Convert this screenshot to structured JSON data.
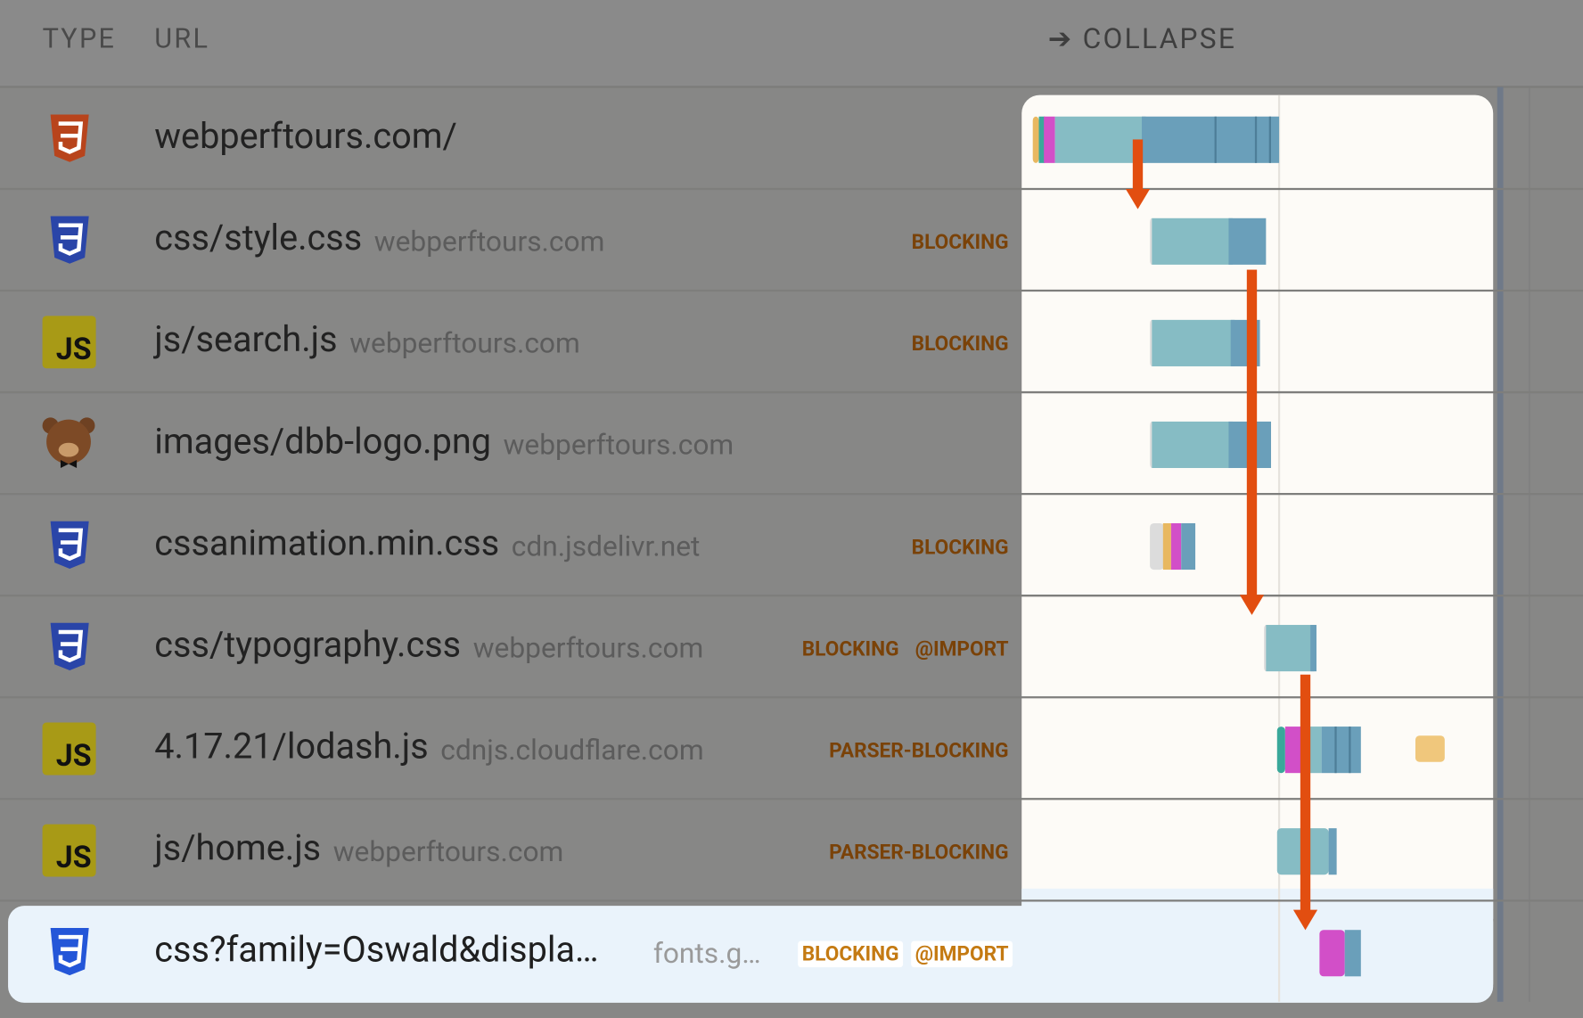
{
  "header": {
    "type": "TYPE",
    "url": "URL",
    "collapse": "➔ COLLAPSE"
  },
  "rows": [
    {
      "path": "webperftours.com/",
      "badges": []
    },
    {
      "path": "css/style.css",
      "domain": "webperftours.com",
      "badges": [
        "BLOCKING"
      ]
    },
    {
      "icon_label": "JS",
      "path": "js/search.js",
      "domain": "webperftours.com",
      "badges": [
        "BLOCKING"
      ]
    },
    {
      "path": "images/dbb-logo.png",
      "domain": "webperftours.com",
      "badges": []
    },
    {
      "path": "cssanimation.min.css",
      "domain": "cdn.jsdelivr.net",
      "badges": [
        "BLOCKING"
      ]
    },
    {
      "path": "css/typography.css",
      "domain": "webperftours.com",
      "badges": [
        "BLOCKING",
        "@IMPORT"
      ]
    },
    {
      "icon_label": "JS",
      "path": "4.17.21/lodash.js",
      "domain": "cdnjs.cloudflare.com",
      "badges": [
        "PARSER-BLOCKING"
      ]
    },
    {
      "icon_label": "JS",
      "path": "js/home.js",
      "domain": "webperftours.com",
      "badges": [
        "PARSER-BLOCKING"
      ]
    },
    {
      "path": "css?family=Oswald&displa…",
      "domain": "fonts.g…",
      "badges": [
        "BLOCKING",
        "@IMPORT"
      ]
    }
  ]
}
